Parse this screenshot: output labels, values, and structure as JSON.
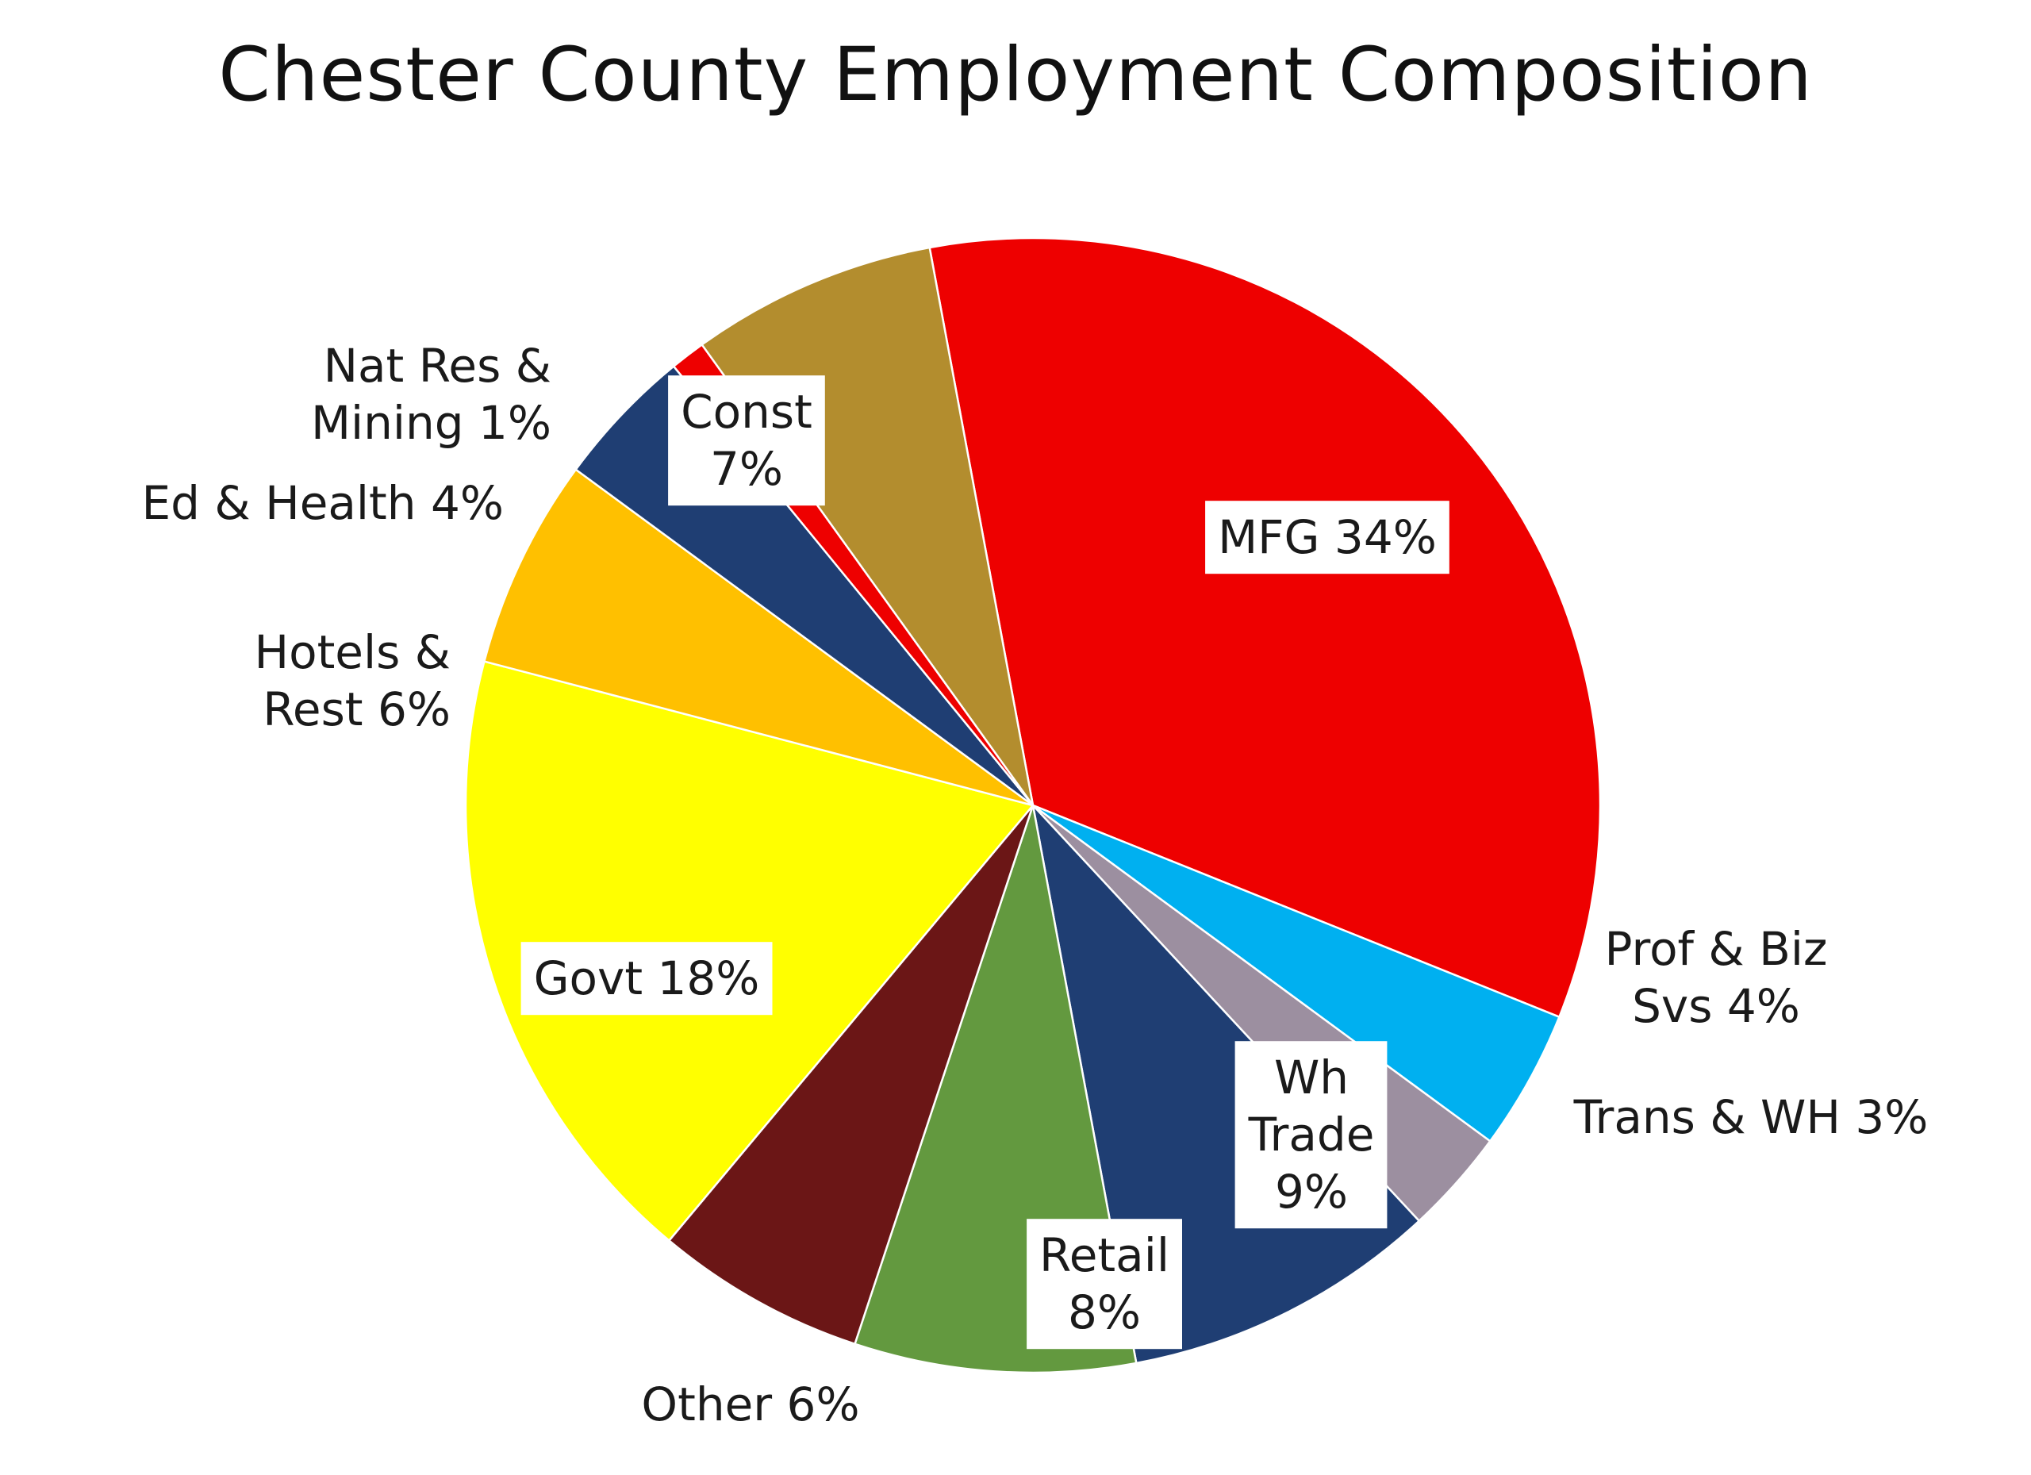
{
  "chart_data": {
    "type": "pie",
    "title": "Chester County Employment Composition",
    "slices": [
      {
        "label": "MFG 34%",
        "category": "MFG",
        "value": 34,
        "color": "#EE0000",
        "label_style": "boxed-inside"
      },
      {
        "label": "Prof & Biz Svs 4%",
        "category": "Prof & Biz Svs",
        "value": 4,
        "color": "#00B0F0",
        "label_style": "outside"
      },
      {
        "label": "Trans & WH 3%",
        "category": "Trans & WH",
        "value": 3,
        "color": "#9C8FA0",
        "label_style": "outside"
      },
      {
        "label": "Wh Trade 9%",
        "category": "Wh Trade",
        "value": 9,
        "color": "#1F3E73",
        "label_style": "boxed-inside"
      },
      {
        "label": "Retail 8%",
        "category": "Retail",
        "value": 8,
        "color": "#63993F",
        "label_style": "boxed-inside"
      },
      {
        "label": "Other 6%",
        "category": "Other",
        "value": 6,
        "color": "#6B1616",
        "label_style": "outside"
      },
      {
        "label": "Govt 18%",
        "category": "Govt",
        "value": 18,
        "color": "#FFFF00",
        "label_style": "boxed-inside"
      },
      {
        "label": "Hotels & Rest 6%",
        "category": "Hotels & Rest",
        "value": 6,
        "color": "#FFC000",
        "label_style": "outside"
      },
      {
        "label": "Ed & Health 4%",
        "category": "Ed & Health",
        "value": 4,
        "color": "#1F3E73",
        "label_style": "outside"
      },
      {
        "label": "Nat Res & Mining 1%",
        "category": "Nat Res & Mining",
        "value": 1,
        "color": "#EE0000",
        "label_style": "outside"
      },
      {
        "label": "Const 7%",
        "category": "Const",
        "value": 7,
        "color": "#B38D2E",
        "label_style": "boxed-inside"
      }
    ]
  }
}
